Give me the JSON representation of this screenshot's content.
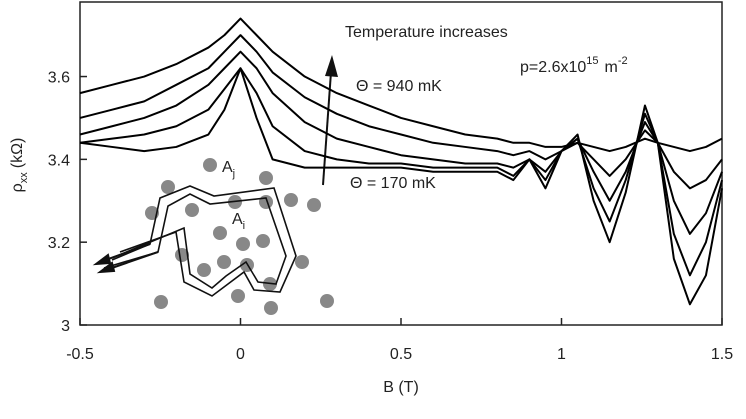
{
  "chart_data": {
    "type": "line",
    "xlabel": "B (T)",
    "ylabel": {
      "symbol": "ρ",
      "sub": "xx",
      "unit": "(kΩ)"
    },
    "x": [
      -0.5,
      -0.4,
      -0.3,
      -0.2,
      -0.1,
      -0.05,
      0,
      0.05,
      0.1,
      0.2,
      0.3,
      0.4,
      0.5,
      0.6,
      0.7,
      0.8,
      0.85,
      0.9,
      0.95,
      1.0,
      1.05,
      1.1,
      1.15,
      1.2,
      1.26,
      1.3,
      1.35,
      1.4,
      1.45,
      1.5
    ],
    "series": [
      {
        "name": "Θ = 940 mK",
        "color": "#000000",
        "values": [
          3.56,
          3.58,
          3.6,
          3.63,
          3.67,
          3.7,
          3.74,
          3.7,
          3.66,
          3.6,
          3.56,
          3.53,
          3.5,
          3.48,
          3.46,
          3.45,
          3.44,
          3.44,
          3.43,
          3.43,
          3.44,
          3.43,
          3.42,
          3.43,
          3.45,
          3.44,
          3.43,
          3.42,
          3.43,
          3.45
        ]
      },
      {
        "color": "#000000",
        "values": [
          3.5,
          3.52,
          3.54,
          3.58,
          3.62,
          3.66,
          3.7,
          3.66,
          3.61,
          3.55,
          3.51,
          3.48,
          3.46,
          3.44,
          3.43,
          3.42,
          3.41,
          3.42,
          3.4,
          3.42,
          3.44,
          3.4,
          3.36,
          3.4,
          3.47,
          3.44,
          3.37,
          3.33,
          3.35,
          3.4
        ]
      },
      {
        "color": "#000000",
        "values": [
          3.46,
          3.48,
          3.5,
          3.53,
          3.58,
          3.62,
          3.66,
          3.62,
          3.56,
          3.49,
          3.45,
          3.43,
          3.41,
          3.4,
          3.39,
          3.39,
          3.38,
          3.4,
          3.37,
          3.42,
          3.45,
          3.37,
          3.3,
          3.37,
          3.49,
          3.44,
          3.3,
          3.22,
          3.27,
          3.37
        ]
      },
      {
        "color": "#000000",
        "values": [
          3.44,
          3.45,
          3.46,
          3.48,
          3.52,
          3.57,
          3.62,
          3.56,
          3.48,
          3.42,
          3.4,
          3.39,
          3.39,
          3.38,
          3.38,
          3.38,
          3.36,
          3.4,
          3.35,
          3.42,
          3.45,
          3.33,
          3.25,
          3.35,
          3.51,
          3.44,
          3.22,
          3.12,
          3.2,
          3.35
        ]
      },
      {
        "name": "Θ = 170 mK",
        "color": "#000000",
        "values": [
          3.44,
          3.43,
          3.42,
          3.43,
          3.46,
          3.52,
          3.62,
          3.5,
          3.4,
          3.38,
          3.38,
          3.38,
          3.38,
          3.37,
          3.37,
          3.37,
          3.35,
          3.4,
          3.33,
          3.42,
          3.46,
          3.3,
          3.2,
          3.32,
          3.53,
          3.44,
          3.16,
          3.05,
          3.12,
          3.33
        ]
      }
    ],
    "xlim": [
      -0.5,
      1.5
    ],
    "xticks": [
      -0.5,
      0,
      0.5,
      1,
      1.5
    ],
    "ylim": [
      3,
      3.78
    ],
    "yticks": [
      3,
      3.2,
      3.4,
      3.6
    ],
    "annotations": {
      "arrow": "Temperature increases",
      "density": {
        "base": "p=2.6x10",
        "exp": "15",
        "unit": "m",
        "unit_exp": "-2"
      },
      "inset": {
        "outer": {
          "base": "A",
          "sub": "j"
        },
        "inner": {
          "base": "A",
          "sub": "i"
        }
      }
    }
  }
}
